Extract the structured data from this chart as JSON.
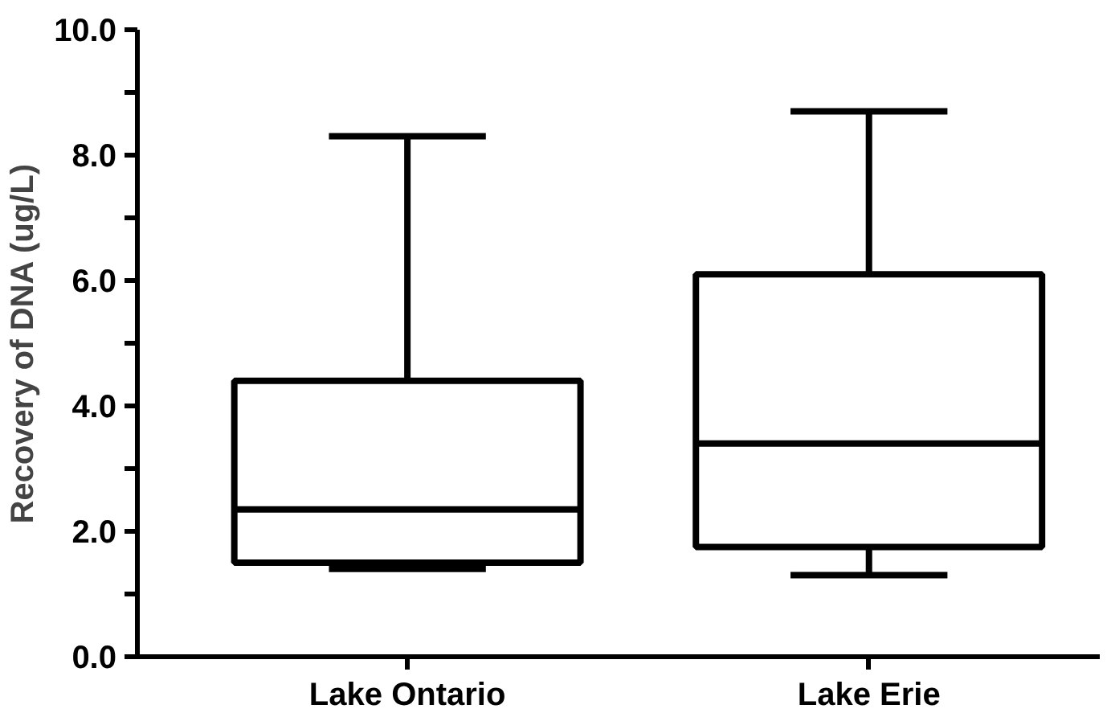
{
  "chart_data": {
    "type": "box",
    "ylabel": "Recovery of DNA (ug/L)",
    "categories": [
      "Lake Ontario",
      "Lake Erie"
    ],
    "boxes": [
      {
        "low": 1.4,
        "q1": 1.5,
        "median": 2.35,
        "q3": 4.4,
        "high": 8.3
      },
      {
        "low": 1.3,
        "q1": 1.75,
        "median": 3.4,
        "q3": 6.1,
        "high": 8.7
      }
    ],
    "color": "#000000",
    "ylim": [
      0,
      10
    ],
    "yticks": [
      {
        "value": 0,
        "label": "0.0"
      },
      {
        "value": 1,
        "label": null
      },
      {
        "value": 2,
        "label": "2.0"
      },
      {
        "value": 3,
        "label": null
      },
      {
        "value": 4,
        "label": "4.0"
      },
      {
        "value": 5,
        "label": null
      },
      {
        "value": 6,
        "label": "6.0"
      },
      {
        "value": 7,
        "label": null
      },
      {
        "value": 8,
        "label": "8.0"
      },
      {
        "value": 9,
        "label": null
      },
      {
        "value": 10,
        "label": "10.0"
      }
    ],
    "grid": false
  }
}
